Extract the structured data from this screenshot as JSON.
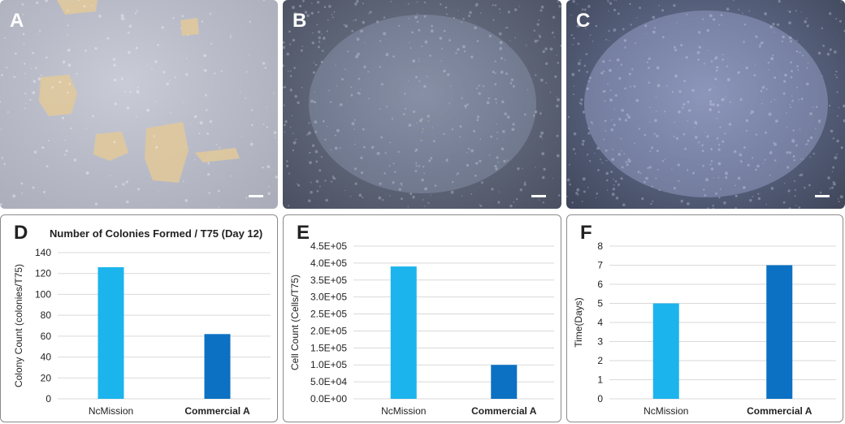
{
  "panels": {
    "a": {
      "label": "A"
    },
    "b": {
      "label": "B"
    },
    "c": {
      "label": "C"
    },
    "d": {
      "label": "D"
    },
    "e": {
      "label": "E"
    },
    "f": {
      "label": "F"
    }
  },
  "colors": {
    "ncmission": "#1cb4ec",
    "commercial": "#0c71c3",
    "grid": "#d9d9d9"
  },
  "chart_data": [
    {
      "type": "bar",
      "title": "Number of Colonies Formed / T75 (Day 12)",
      "xlabel": "",
      "ylabel": "Colony Count (colonies/T75)",
      "categories": [
        "NcMission",
        "Commercial A"
      ],
      "values": [
        126,
        62
      ],
      "ylim": [
        0,
        140
      ],
      "ticks": [
        "0",
        "20",
        "40",
        "60",
        "80",
        "100",
        "120",
        "140"
      ],
      "grid": true
    },
    {
      "type": "bar",
      "title": "",
      "xlabel": "",
      "ylabel": "Cell Count (Cells/T75)",
      "categories": [
        "NcMission",
        "Commercial A"
      ],
      "values": [
        390000,
        100000
      ],
      "ylim": [
        0,
        450000
      ],
      "ticks": [
        "0.0E+00",
        "5.0E+04",
        "1.0E+05",
        "1.5E+05",
        "2.0E+05",
        "2.5E+05",
        "3.0E+05",
        "3.5E+05",
        "4.0E+05",
        "4.5E+05"
      ],
      "grid": true
    },
    {
      "type": "bar",
      "title": "",
      "xlabel": "",
      "ylabel": "Time(Days)",
      "categories": [
        "NcMission",
        "Commercial A"
      ],
      "values": [
        5,
        7
      ],
      "ylim": [
        0,
        8
      ],
      "ticks": [
        "0",
        "1",
        "2",
        "3",
        "4",
        "5",
        "6",
        "7",
        "8"
      ],
      "grid": true
    }
  ]
}
